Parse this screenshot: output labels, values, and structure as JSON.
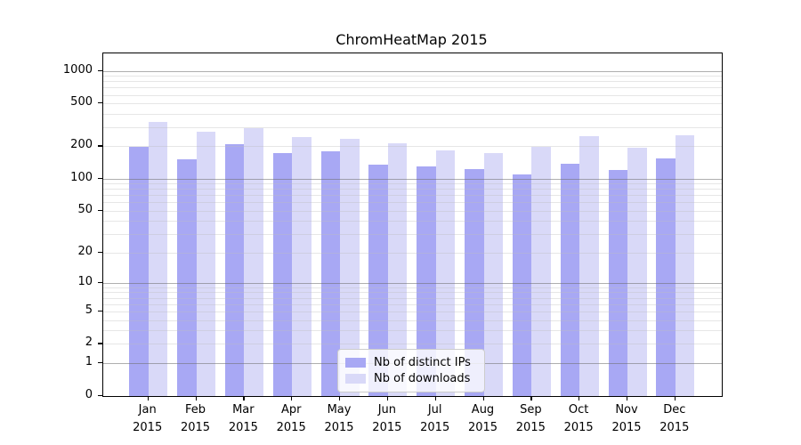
{
  "title": "ChromHeatMap 2015",
  "chart_data": {
    "type": "bar",
    "title": "ChromHeatMap 2015",
    "categories": [
      "Jan 2015",
      "Feb 2015",
      "Mar 2015",
      "Apr 2015",
      "May 2015",
      "Jun 2015",
      "Jul 2015",
      "Aug 2015",
      "Sep 2015",
      "Oct 2015",
      "Nov 2015",
      "Dec 2015"
    ],
    "series": [
      {
        "name": "Nb of distinct IPs",
        "color": "#a8a8f4",
        "values": [
          197,
          152,
          208,
          173,
          181,
          136,
          131,
          123,
          110,
          139,
          120,
          154
        ]
      },
      {
        "name": "Nb of downloads",
        "color": "#d9d9f8",
        "values": [
          334,
          272,
          293,
          243,
          237,
          213,
          184,
          172,
          198,
          251,
          195,
          252
        ]
      }
    ],
    "xlabel": "",
    "ylabel": "",
    "yscale": "log1p",
    "y_ticks": [
      0,
      1,
      2,
      5,
      10,
      20,
      50,
      100,
      200,
      500,
      1000
    ],
    "ylim": [
      0,
      1460
    ],
    "grid": true,
    "legend_position": "lower center"
  },
  "colors": {
    "bar_dark": "#a8a8f4",
    "bar_light": "#d9d9f8",
    "grid_major": "#6e6e6e",
    "grid_minor": "#bebebe",
    "spine": "#000000",
    "background": "#ffffff"
  }
}
